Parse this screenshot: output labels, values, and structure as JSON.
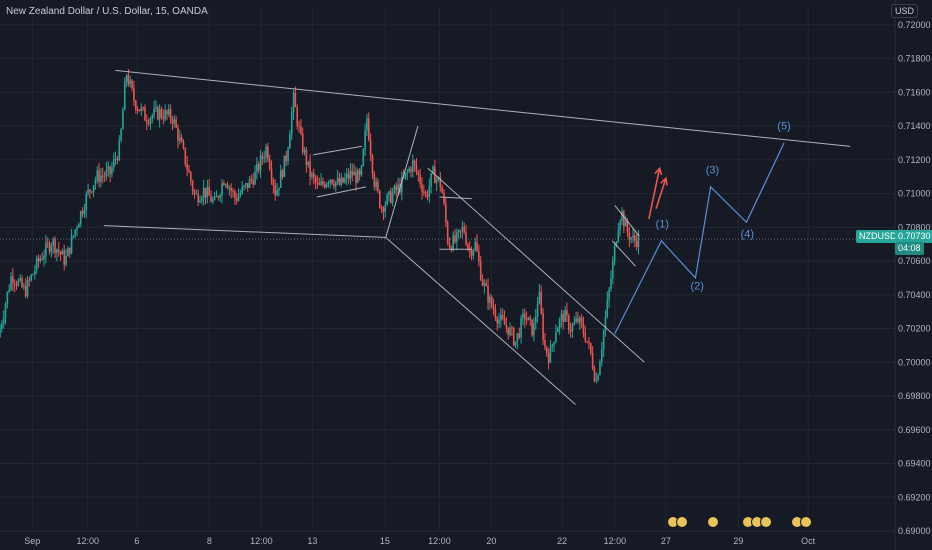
{
  "header": {
    "title": "New Zealand Dollar / U.S. Dollar, 15, OANDA"
  },
  "currency": "USD",
  "colors": {
    "bg": "#161a25",
    "grid": "#232733",
    "text": "#b2b5be",
    "up": "#26a69a",
    "down": "#ef5350",
    "trend": "#c8ccd4",
    "wave": "#5b8fd6",
    "arrow": "#ef5350"
  },
  "chart_data": {
    "type": "candlestick",
    "symbol": "NZDUSD",
    "current_price": "0.70730",
    "countdown": "04:08",
    "ylim": [
      0.69,
      0.721
    ],
    "y_ticks": [
      "0.72000",
      "0.71800",
      "0.71600",
      "0.71400",
      "0.71200",
      "0.71000",
      "0.70800",
      "0.70600",
      "0.70400",
      "0.70200",
      "0.70000",
      "0.69800",
      "0.69600",
      "0.69400",
      "0.69200",
      "0.69000"
    ],
    "xlim": [
      0,
      100
    ],
    "x_ticks": [
      {
        "x": 3.6,
        "label": "Sep"
      },
      {
        "x": 9.8,
        "label": "12:00"
      },
      {
        "x": 15.3,
        "label": "6"
      },
      {
        "x": 23.4,
        "label": "8"
      },
      {
        "x": 29.2,
        "label": "12:00"
      },
      {
        "x": 34.9,
        "label": "13"
      },
      {
        "x": 43.0,
        "label": "15"
      },
      {
        "x": 49.1,
        "label": "12:00"
      },
      {
        "x": 54.9,
        "label": "20"
      },
      {
        "x": 62.8,
        "label": "22"
      },
      {
        "x": 68.7,
        "label": "12:00"
      },
      {
        "x": 74.4,
        "label": "27"
      },
      {
        "x": 82.5,
        "label": "29"
      },
      {
        "x": 90.3,
        "label": "Oct"
      }
    ],
    "price_path": [
      [
        0,
        0.7015
      ],
      [
        1.5,
        0.7052
      ],
      [
        3,
        0.7042
      ],
      [
        4.5,
        0.706
      ],
      [
        6,
        0.7072
      ],
      [
        7.5,
        0.706
      ],
      [
        8.8,
        0.7082
      ],
      [
        10,
        0.71
      ],
      [
        11,
        0.711
      ],
      [
        12.5,
        0.7112
      ],
      [
        13.6,
        0.7128
      ],
      [
        14.3,
        0.7172
      ],
      [
        15.2,
        0.7155
      ],
      [
        16.5,
        0.7145
      ],
      [
        18,
        0.7148
      ],
      [
        19.5,
        0.7145
      ],
      [
        20.8,
        0.7122
      ],
      [
        22,
        0.7098
      ],
      [
        23,
        0.7102
      ],
      [
        24.2,
        0.7094
      ],
      [
        25.3,
        0.711
      ],
      [
        26.5,
        0.7097
      ],
      [
        27.7,
        0.7104
      ],
      [
        28.8,
        0.7112
      ],
      [
        30,
        0.7128
      ],
      [
        31,
        0.71
      ],
      [
        32.2,
        0.7122
      ],
      [
        33,
        0.7156
      ],
      [
        33.8,
        0.7132
      ],
      [
        34.8,
        0.7112
      ],
      [
        35.8,
        0.7103
      ],
      [
        37,
        0.711
      ],
      [
        38.2,
        0.7105
      ],
      [
        39.5,
        0.7112
      ],
      [
        40.5,
        0.7108
      ],
      [
        41.2,
        0.7145
      ],
      [
        42,
        0.7108
      ],
      [
        42.8,
        0.7092
      ],
      [
        43.8,
        0.7098
      ],
      [
        45,
        0.7105
      ],
      [
        46.3,
        0.7118
      ],
      [
        47,
        0.711
      ],
      [
        47.8,
        0.7098
      ],
      [
        48.6,
        0.7112
      ],
      [
        49.5,
        0.7105
      ],
      [
        49.9,
        0.7088
      ],
      [
        50.3,
        0.707
      ],
      [
        51.2,
        0.7072
      ],
      [
        52,
        0.708
      ],
      [
        52.6,
        0.7066
      ],
      [
        53.3,
        0.707
      ],
      [
        54.1,
        0.7048
      ],
      [
        55,
        0.7035
      ],
      [
        56,
        0.7025
      ],
      [
        57,
        0.702
      ],
      [
        57.8,
        0.7012
      ],
      [
        58.8,
        0.7028
      ],
      [
        59.8,
        0.7018
      ],
      [
        60.4,
        0.7042
      ],
      [
        61,
        0.701
      ],
      [
        61.6,
        0.7003
      ],
      [
        62.3,
        0.702
      ],
      [
        63.2,
        0.7028
      ],
      [
        64,
        0.702
      ],
      [
        64.8,
        0.7025
      ],
      [
        65.6,
        0.7016
      ],
      [
        66.3,
        0.7003
      ],
      [
        66.8,
        0.6988
      ],
      [
        67.3,
        0.7005
      ],
      [
        68,
        0.7032
      ],
      [
        68.6,
        0.7055
      ],
      [
        69.2,
        0.708
      ],
      [
        69.6,
        0.709
      ],
      [
        70.2,
        0.7078
      ],
      [
        71,
        0.7072
      ],
      [
        71.5,
        0.7073
      ]
    ],
    "trendlines": [
      [
        [
          12.9,
          0.7173
        ],
        [
          95,
          0.7128
        ]
      ],
      [
        [
          11.6,
          0.7081
        ],
        [
          43.1,
          0.7074
        ]
      ],
      [
        [
          43.1,
          0.7074
        ],
        [
          46.7,
          0.714
        ]
      ],
      [
        [
          43.1,
          0.7074
        ],
        [
          64.3,
          0.6975
        ]
      ],
      [
        [
          47.8,
          0.7115
        ],
        [
          72,
          0.7
        ]
      ],
      [
        [
          35,
          0.7123
        ],
        [
          40.4,
          0.7128
        ]
      ],
      [
        [
          35.4,
          0.7098
        ],
        [
          40.9,
          0.7104
        ]
      ],
      [
        [
          49.1,
          0.7067
        ],
        [
          52.7,
          0.7067
        ]
      ],
      [
        [
          49.1,
          0.7098
        ],
        [
          52.7,
          0.7097
        ]
      ],
      [
        [
          68.7,
          0.7093
        ],
        [
          71.4,
          0.7075
        ]
      ],
      [
        [
          68.4,
          0.7072
        ],
        [
          71,
          0.7057
        ]
      ]
    ],
    "wave_path": [
      [
        68.7,
        0.7017
      ],
      [
        73.9,
        0.7072
      ],
      [
        77.7,
        0.705
      ],
      [
        79.4,
        0.7104
      ],
      [
        83.4,
        0.7083
      ],
      [
        87.6,
        0.713
      ]
    ],
    "wave_labels": [
      {
        "text": "(1)",
        "x": 74,
        "y": 0.708
      },
      {
        "text": "(2)",
        "x": 77.9,
        "y": 0.7043
      },
      {
        "text": "(3)",
        "x": 79.6,
        "y": 0.7112
      },
      {
        "text": "(4)",
        "x": 83.5,
        "y": 0.7074
      },
      {
        "text": "(5)",
        "x": 87.6,
        "y": 0.7138
      }
    ],
    "arrows": [
      [
        [
          72.5,
          0.7085
        ],
        [
          73.7,
          0.7115
        ]
      ],
      [
        [
          73.3,
          0.7091
        ],
        [
          74.4,
          0.7109
        ]
      ]
    ],
    "dotted_price_line": 0.7073
  }
}
